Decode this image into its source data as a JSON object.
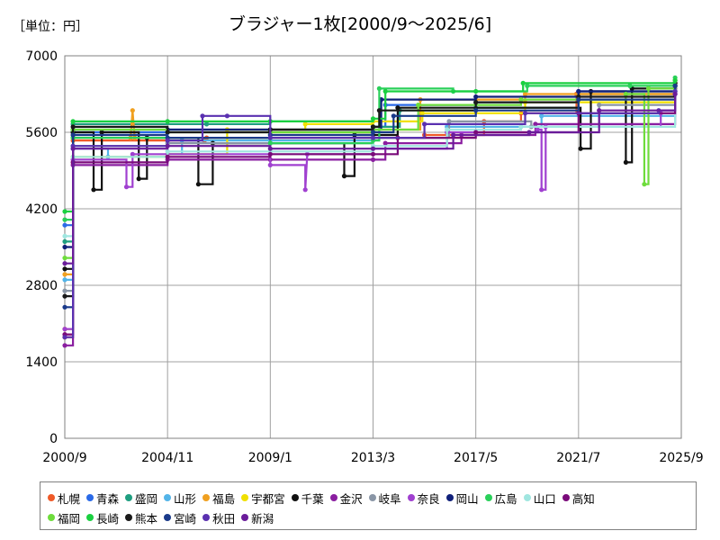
{
  "unit_label": "［単位：円］",
  "chart_data": {
    "type": "line",
    "title": "ブラジャー1枚[2000/9〜2025/6]",
    "xlabel": "",
    "ylabel": "",
    "x_tick_labels": [
      "2000/9",
      "2004/11",
      "2009/1",
      "2013/3",
      "2017/5",
      "2021/7",
      "2025/9"
    ],
    "y_tick_labels": [
      "0",
      "1400",
      "2800",
      "4200",
      "5600",
      "7000"
    ],
    "ylim": [
      0,
      7000
    ],
    "grid": true,
    "legend_position": "bottom",
    "series": [
      {
        "name": "札幌",
        "color": "#ef5a28",
        "points": [
          [
            "2000/9",
            1850
          ],
          [
            "2001/1",
            5450
          ],
          [
            "2006/5",
            5450
          ],
          [
            "2006/6",
            5500
          ],
          [
            "2013/3",
            5500
          ],
          [
            "2015/4",
            5550
          ],
          [
            "2017/9",
            5800
          ],
          [
            "2019/3",
            5950
          ],
          [
            "2021/6",
            6300
          ],
          [
            "2025/6",
            6550
          ]
        ]
      },
      {
        "name": "青森",
        "color": "#2a6ae8",
        "points": [
          [
            "2000/9",
            3900
          ],
          [
            "2001/1",
            5600
          ],
          [
            "2004/11",
            5650
          ],
          [
            "2009/1",
            5650
          ],
          [
            "2013/3",
            5700
          ],
          [
            "2013/9",
            6100
          ],
          [
            "2017/5",
            6150
          ],
          [
            "2021/7",
            6350
          ],
          [
            "2025/6",
            6500
          ]
        ]
      },
      {
        "name": "盛岡",
        "color": "#1f9e80",
        "points": [
          [
            "2000/9",
            3600
          ],
          [
            "2001/1",
            5750
          ],
          [
            "2006/6",
            5750
          ],
          [
            "2009/1",
            5800
          ],
          [
            "2013/3",
            5700
          ],
          [
            "2014/4",
            6000
          ],
          [
            "2017/5",
            6050
          ],
          [
            "2021/7",
            6300
          ],
          [
            "2025/6",
            6450
          ]
        ]
      },
      {
        "name": "山形",
        "color": "#53b4e8",
        "points": [
          [
            "2000/9",
            2900
          ],
          [
            "2001/1",
            5300
          ],
          [
            "2002/6",
            5150
          ],
          [
            "2004/11",
            5200
          ],
          [
            "2005/6",
            5450
          ],
          [
            "2009/1",
            5450
          ],
          [
            "2013/3",
            5500
          ],
          [
            "2016/3",
            5700
          ],
          [
            "2020/1",
            5900
          ],
          [
            "2025/6",
            6350
          ]
        ]
      },
      {
        "name": "福島",
        "color": "#f0a020",
        "points": [
          [
            "2000/9",
            3000
          ],
          [
            "2001/1",
            5500
          ],
          [
            "2003/5",
            5500
          ],
          [
            "2003/6",
            6000
          ],
          [
            "2003/7",
            5500
          ],
          [
            "2009/1",
            5600
          ],
          [
            "2013/3",
            5650
          ],
          [
            "2015/2",
            6200
          ],
          [
            "2019/5",
            6300
          ],
          [
            "2025/6",
            6500
          ]
        ]
      },
      {
        "name": "宇都宮",
        "color": "#f0e000",
        "points": [
          [
            "2000/9",
            2000
          ],
          [
            "2001/1",
            5150
          ],
          [
            "2004/11",
            5200
          ],
          [
            "2007/4",
            5650
          ],
          [
            "2010/6",
            5750
          ],
          [
            "2013/3",
            5800
          ],
          [
            "2015/3",
            5950
          ],
          [
            "2019/5",
            6150
          ],
          [
            "2025/6",
            6400
          ]
        ]
      },
      {
        "name": "千葉",
        "color": "#111111",
        "points": [
          [
            "2000/9",
            3100
          ],
          [
            "2001/1",
            5600
          ],
          [
            "2001/11",
            4550
          ],
          [
            "2002/3",
            5600
          ],
          [
            "2003/9",
            4750
          ],
          [
            "2004/1",
            5500
          ],
          [
            "2006/2",
            4650
          ],
          [
            "2006/9",
            5400
          ],
          [
            "2012/1",
            4800
          ],
          [
            "2012/6",
            5550
          ],
          [
            "2014/3",
            6050
          ],
          [
            "2021/8",
            5300
          ],
          [
            "2022/1",
            6350
          ],
          [
            "2023/6",
            5050
          ],
          [
            "2023/9",
            6400
          ],
          [
            "2025/6",
            6500
          ]
        ]
      },
      {
        "name": "金沢",
        "color": "#8a1ea0",
        "points": [
          [
            "2000/9",
            1700
          ],
          [
            "2001/1",
            5000
          ],
          [
            "2004/11",
            5100
          ],
          [
            "2009/1",
            5100
          ],
          [
            "2013/3",
            5100
          ],
          [
            "2013/9",
            5400
          ],
          [
            "2016/10",
            5550
          ],
          [
            "2019/10",
            5750
          ],
          [
            "2025/6",
            6350
          ]
        ]
      },
      {
        "name": "岐阜",
        "color": "#8a96a6",
        "points": [
          [
            "2000/9",
            2700
          ],
          [
            "2001/1",
            5350
          ],
          [
            "2004/11",
            5400
          ],
          [
            "2009/1",
            5400
          ],
          [
            "2013/3",
            5500
          ],
          [
            "2016/4",
            5800
          ],
          [
            "2019/8",
            5700
          ],
          [
            "2022/5",
            6100
          ],
          [
            "2025/6",
            6400
          ]
        ]
      },
      {
        "name": "奈良",
        "color": "#a040d0",
        "points": [
          [
            "2000/9",
            2000
          ],
          [
            "2001/1",
            5100
          ],
          [
            "2003/3",
            4600
          ],
          [
            "2003/6",
            5200
          ],
          [
            "2009/1",
            5000
          ],
          [
            "2010/6",
            4550
          ],
          [
            "2010/7",
            5200
          ],
          [
            "2013/3",
            5300
          ],
          [
            "2016/3",
            5600
          ],
          [
            "2019/11",
            5650
          ],
          [
            "2020/1",
            4550
          ],
          [
            "2020/3",
            5700
          ],
          [
            "2024/11",
            5950
          ],
          [
            "2025/6",
            6450
          ]
        ]
      },
      {
        "name": "岡山",
        "color": "#10207a",
        "points": [
          [
            "2000/9",
            3500
          ],
          [
            "2001/1",
            5650
          ],
          [
            "2004/11",
            5650
          ],
          [
            "2009/1",
            5650
          ],
          [
            "2013/3",
            5650
          ],
          [
            "2013/7",
            6200
          ],
          [
            "2017/5",
            6250
          ],
          [
            "2021/7",
            6350
          ],
          [
            "2025/6",
            6450
          ]
        ]
      },
      {
        "name": "広島",
        "color": "#2ad05a",
        "points": [
          [
            "2000/9",
            4000
          ],
          [
            "2001/1",
            5500
          ],
          [
            "2004/11",
            5500
          ],
          [
            "2009/1",
            5400
          ],
          [
            "2013/3",
            5450
          ],
          [
            "2013/6",
            6400
          ],
          [
            "2016/6",
            6350
          ],
          [
            "2019/6",
            6450
          ],
          [
            "2023/8",
            6450
          ],
          [
            "2025/6",
            6600
          ]
        ]
      },
      {
        "name": "山口",
        "color": "#a0e6e0",
        "points": [
          [
            "2000/9",
            3700
          ],
          [
            "2001/1",
            5150
          ],
          [
            "2004/11",
            5250
          ],
          [
            "2009/1",
            5250
          ],
          [
            "2013/3",
            5350
          ],
          [
            "2016/3",
            5650
          ],
          [
            "2019/3",
            5700
          ],
          [
            "2025/6",
            6350
          ]
        ]
      },
      {
        "name": "高知",
        "color": "#7a0a7a",
        "points": [
          [
            "2000/9",
            1900
          ],
          [
            "2001/1",
            5050
          ],
          [
            "2004/11",
            5150
          ],
          [
            "2009/1",
            5200
          ],
          [
            "2013/3",
            5200
          ],
          [
            "2014/3",
            5500
          ],
          [
            "2017/5",
            5600
          ],
          [
            "2021/7",
            5950
          ],
          [
            "2025/6",
            6300
          ]
        ]
      },
      {
        "name": "福岡",
        "color": "#6edc3c",
        "points": [
          [
            "2000/9",
            3300
          ],
          [
            "2001/1",
            5650
          ],
          [
            "2004/11",
            5600
          ],
          [
            "2009/1",
            5600
          ],
          [
            "2013/3",
            5650
          ],
          [
            "2015/1",
            6100
          ],
          [
            "2019/3",
            6200
          ],
          [
            "2023/6",
            6300
          ],
          [
            "2024/3",
            4650
          ],
          [
            "2024/5",
            6400
          ],
          [
            "2025/6",
            6550
          ]
        ]
      },
      {
        "name": "長崎",
        "color": "#1ad040",
        "points": [
          [
            "2000/9",
            4150
          ],
          [
            "2001/1",
            5800
          ],
          [
            "2004/11",
            5800
          ],
          [
            "2009/1",
            5800
          ],
          [
            "2013/3",
            5850
          ],
          [
            "2013/9",
            6350
          ],
          [
            "2017/5",
            6350
          ],
          [
            "2019/4",
            6500
          ],
          [
            "2025/6",
            6550
          ]
        ]
      },
      {
        "name": "熊本",
        "color": "#1a1a1a",
        "points": [
          [
            "2000/9",
            2600
          ],
          [
            "2001/1",
            5700
          ],
          [
            "2004/11",
            5600
          ],
          [
            "2009/1",
            5650
          ],
          [
            "2013/3",
            5700
          ],
          [
            "2013/6",
            6000
          ],
          [
            "2017/5",
            6150
          ],
          [
            "2021/7",
            6250
          ],
          [
            "2025/6",
            6450
          ]
        ]
      },
      {
        "name": "宮崎",
        "color": "#1a3a8a",
        "points": [
          [
            "2000/9",
            2400
          ],
          [
            "2001/1",
            5550
          ],
          [
            "2004/11",
            5500
          ],
          [
            "2009/1",
            5550
          ],
          [
            "2013/3",
            5600
          ],
          [
            "2014/1",
            5900
          ],
          [
            "2017/5",
            6000
          ],
          [
            "2021/7",
            6200
          ],
          [
            "2025/6",
            6450
          ]
        ]
      },
      {
        "name": "秋田",
        "color": "#5a30b0",
        "points": [
          [
            "2000/9",
            1850
          ],
          [
            "2001/1",
            5350
          ],
          [
            "2004/11",
            5450
          ],
          [
            "2006/4",
            5900
          ],
          [
            "2007/4",
            5900
          ],
          [
            "2009/1",
            5500
          ],
          [
            "2013/3",
            5500
          ],
          [
            "2015/4",
            5750
          ],
          [
            "2019/5",
            5950
          ],
          [
            "2024/10",
            6000
          ],
          [
            "2025/6",
            6350
          ]
        ]
      },
      {
        "name": "新潟",
        "color": "#6a1c9a",
        "points": [
          [
            "2000/9",
            3200
          ],
          [
            "2001/1",
            5300
          ],
          [
            "2004/11",
            5350
          ],
          [
            "2009/1",
            5300
          ],
          [
            "2013/3",
            5300
          ],
          [
            "2016/6",
            5550
          ],
          [
            "2019/7",
            5600
          ],
          [
            "2022/5",
            6000
          ],
          [
            "2025/6",
            6300
          ]
        ]
      }
    ]
  }
}
